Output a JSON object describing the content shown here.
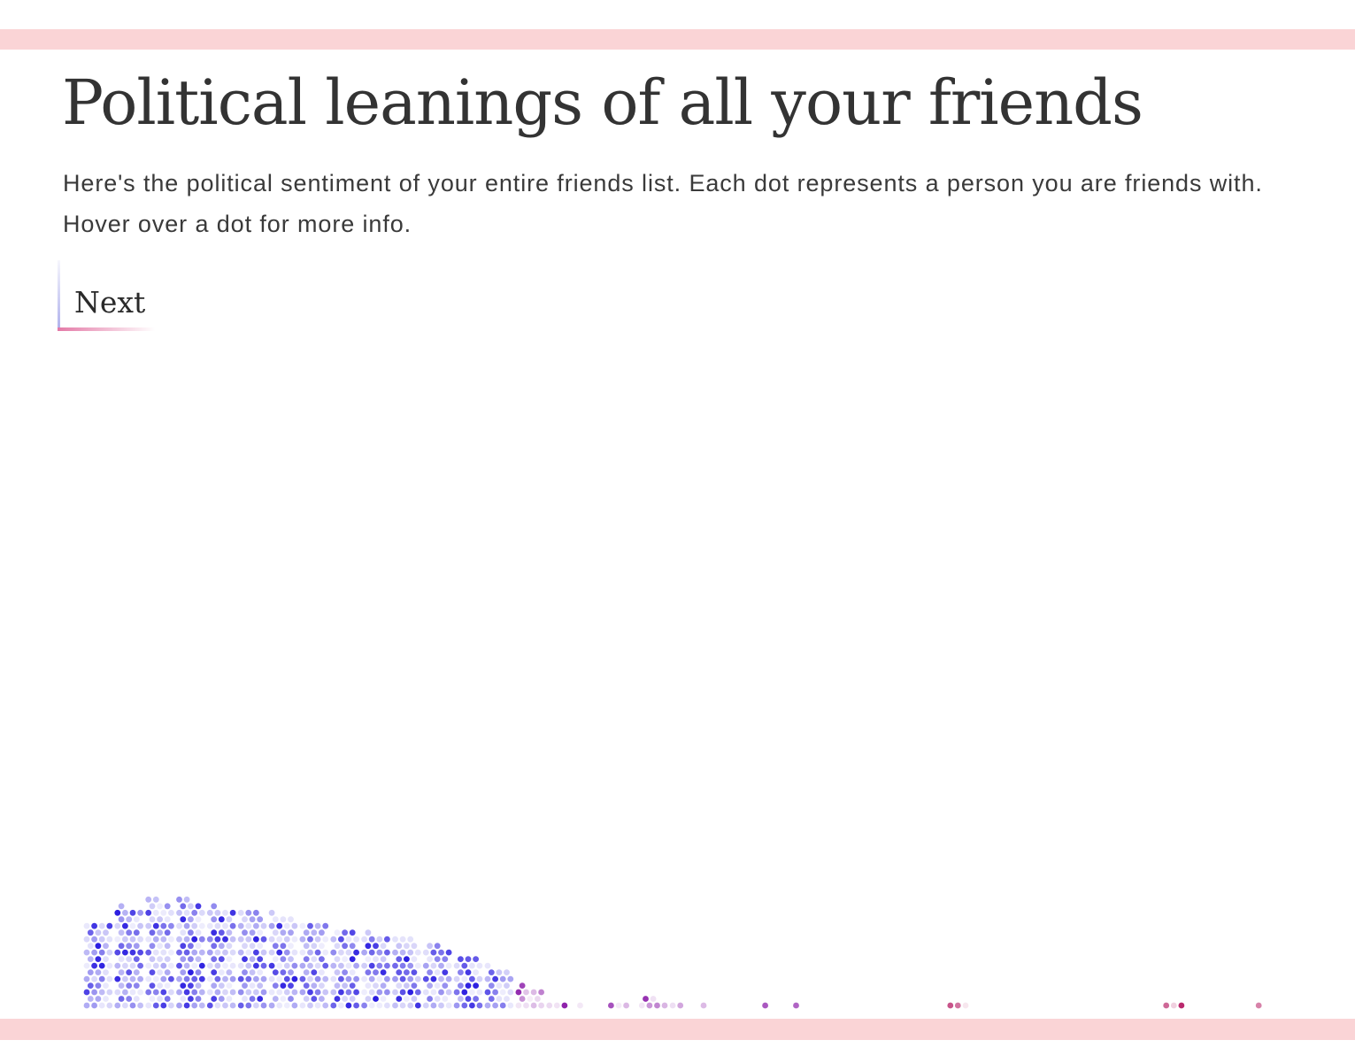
{
  "header": {
    "title": "Political leanings of all your friends",
    "description": "Here's the political sentiment of your entire friends list. Each dot represents a person you are friends with. Hover over a dot for more info."
  },
  "controls": {
    "next_label": "Next"
  },
  "colors": {
    "band": "#fad4d6",
    "liberal": "#2a1ce0",
    "moderate": "#8a1aa8",
    "conservative": "#b3125d"
  },
  "chart_data": {
    "type": "scatter",
    "encoding": "beeswarm of friends along a liberal-to-conservative spectrum",
    "series": [
      {
        "name": "",
        "lean": [
          -0.95,
          -0.9,
          -0.85,
          -0.8,
          -0.75,
          -0.7,
          -0.65,
          -0.6,
          -0.55,
          -0.5,
          -0.45,
          -0.4,
          -0.35,
          -0.3,
          -0.25,
          -0.2,
          -0.15,
          -0.1,
          -0.05,
          0.0,
          0.05,
          0.1,
          0.15,
          0.2,
          0.25,
          0.3,
          0.35,
          0.4,
          0.45,
          0.5,
          0.55,
          0.6,
          0.65,
          0.7,
          0.75,
          0.8,
          0.85,
          0.9,
          0.95
        ],
        "count": [
          46,
          54,
          58,
          58,
          54,
          52,
          50,
          46,
          42,
          40,
          38,
          34,
          28,
          22,
          12,
          3,
          1,
          3,
          6,
          2,
          1,
          0,
          1,
          1,
          0,
          0,
          0,
          0,
          3,
          0,
          0,
          0,
          0,
          0,
          0,
          3,
          0,
          0,
          1
        ]
      }
    ]
  }
}
